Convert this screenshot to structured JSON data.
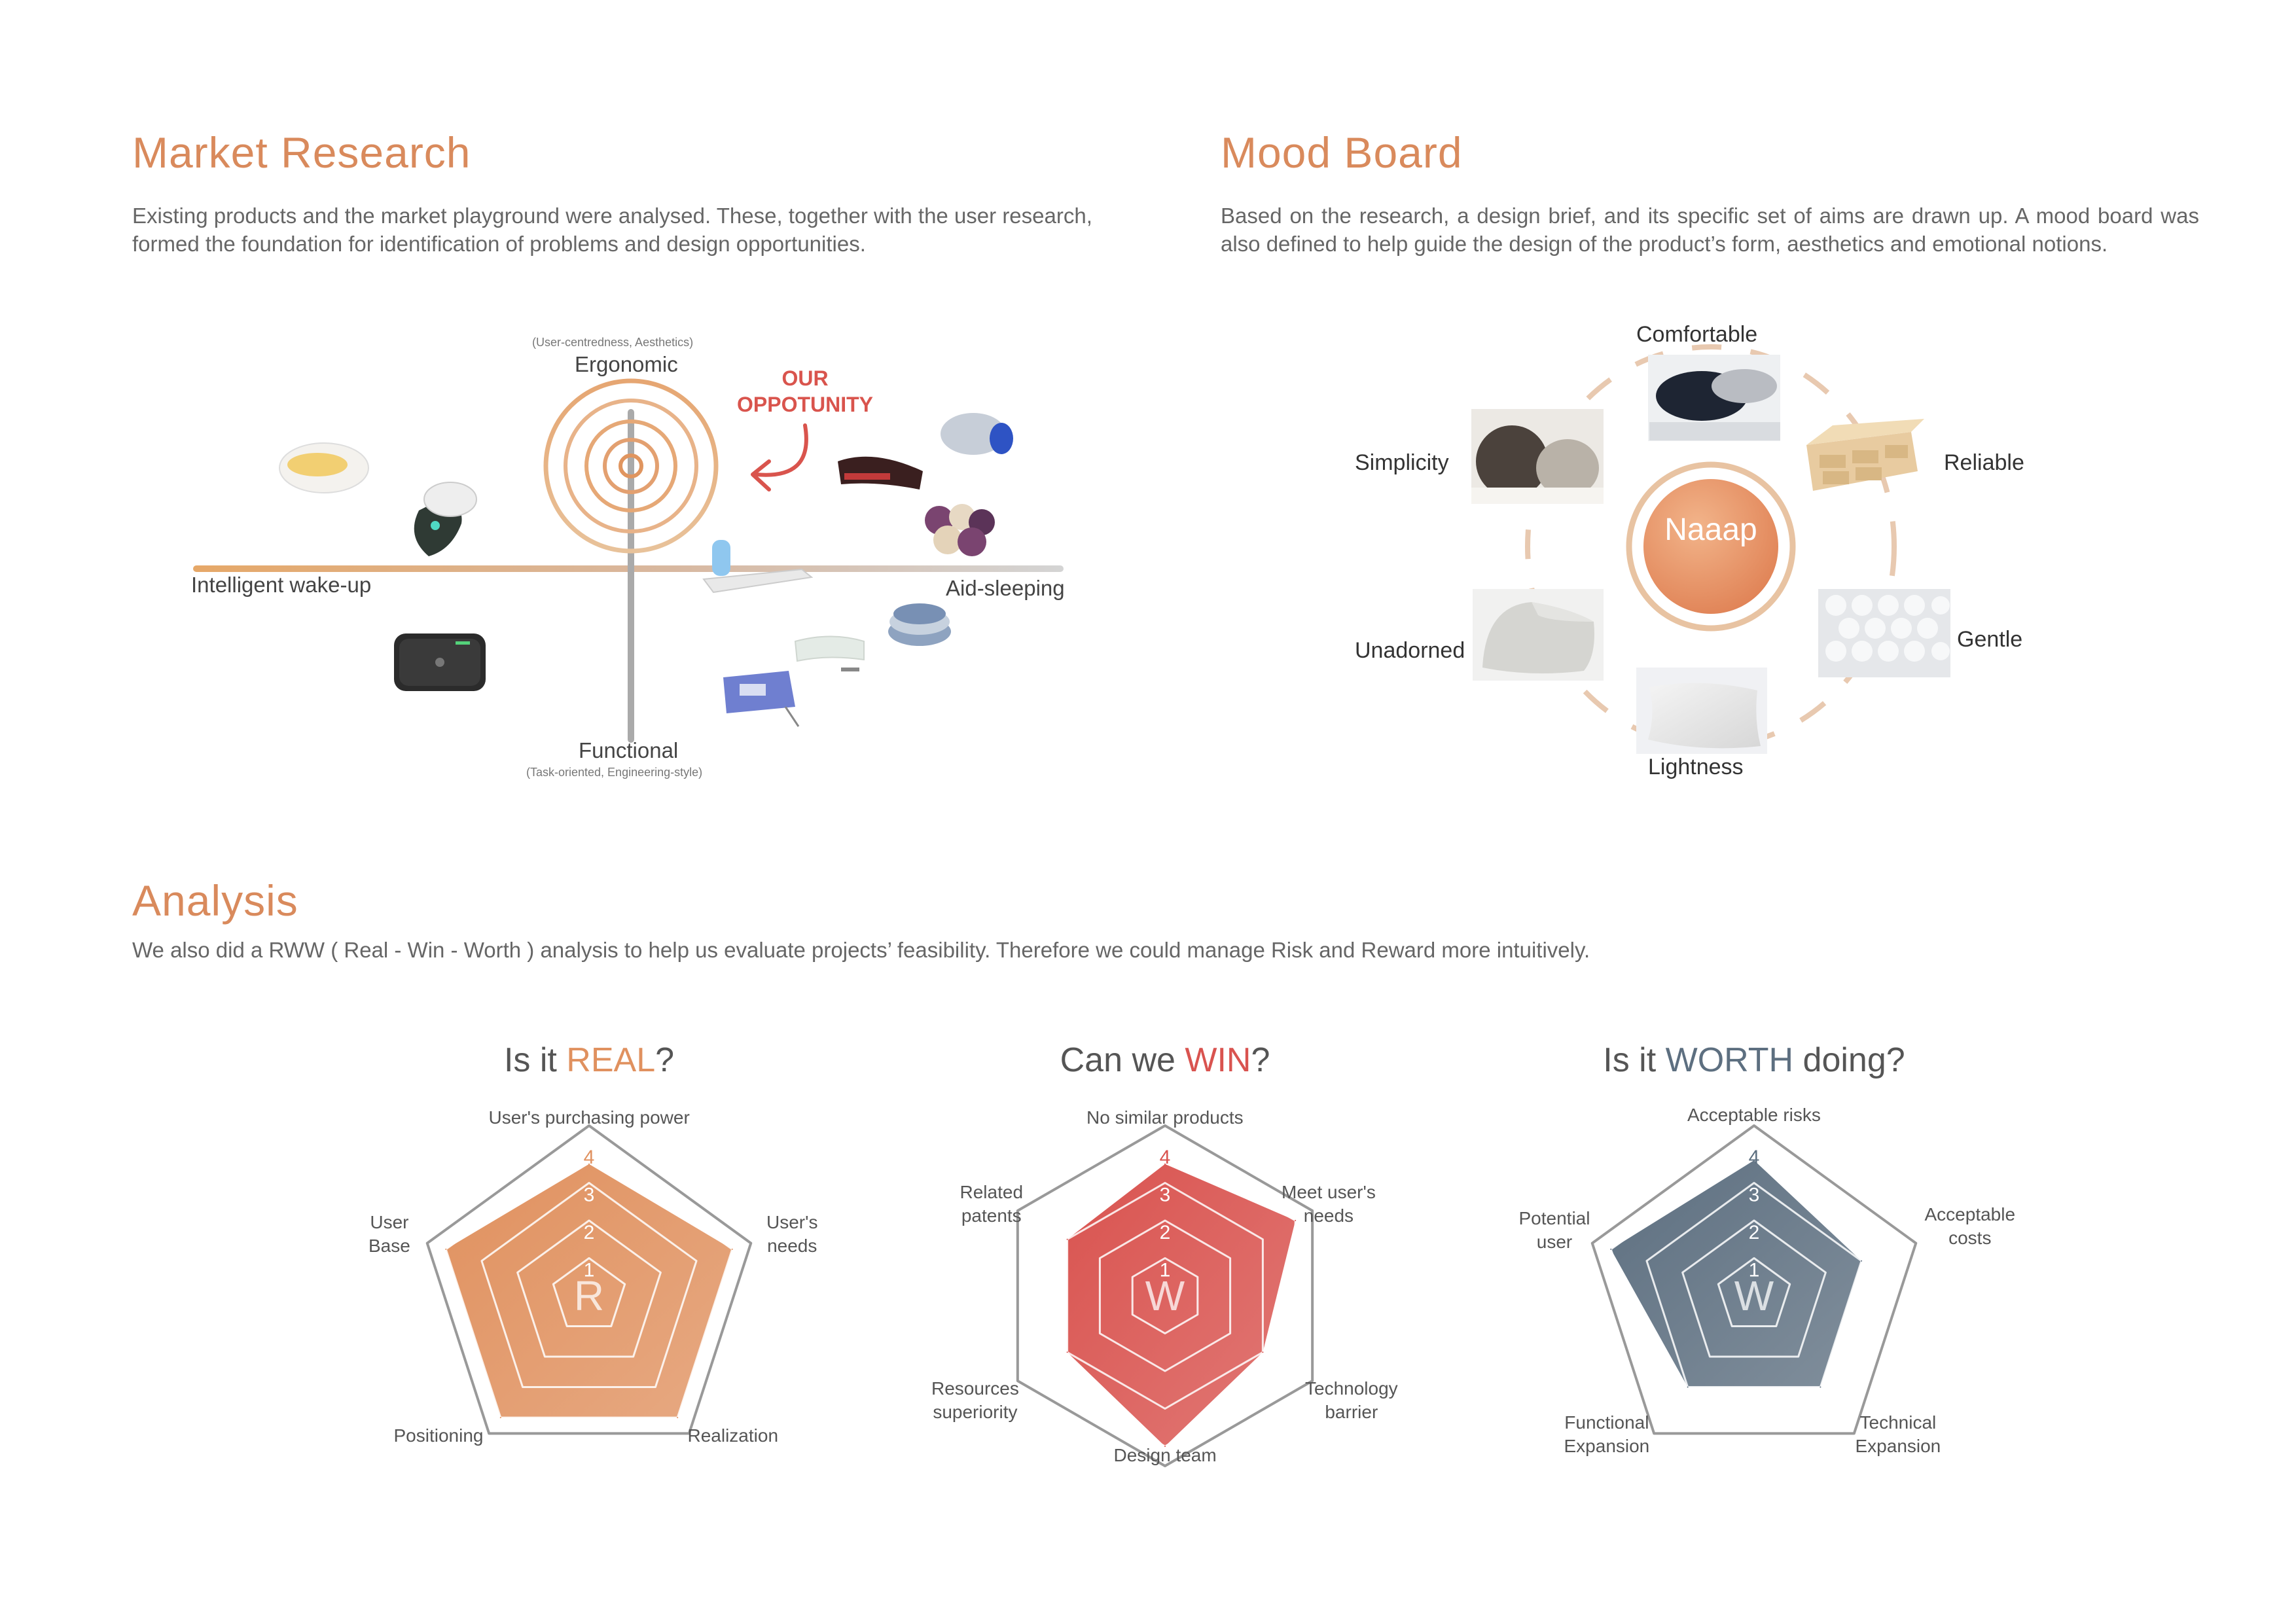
{
  "market": {
    "title": "Market Research",
    "description": "Existing products and the market playground were analysed. These, together with the user research, formed the foundation for identification of problems and design opportunities.",
    "axis": {
      "top_note": "(User-centredness, Aesthetics)",
      "top": "Ergonomic",
      "bottom": "Functional",
      "bottom_note": "(Task-oriented, Engineering-style)",
      "left": "Intelligent wake-up",
      "right": "Aid-sleeping"
    },
    "opportunity": "OUR\nOPPOTUNITY"
  },
  "mood": {
    "title": "Mood Board",
    "description": "Based on the research, a design brief, and its specific set of aims are drawn up. A mood board was also defined to help guide the design of the product’s form, aesthetics and emotional notions.",
    "center": "Naaap",
    "keywords": {
      "comfortable": "Comfortable",
      "reliable": "Reliable",
      "gentle": "Gentle",
      "lightness": "Lightness",
      "unadorned": "Unadorned",
      "simplicity": "Simplicity"
    }
  },
  "analysis": {
    "title": "Analysis",
    "description": "We also did a RWW ( Real - Win - Worth ) analysis to help us evaluate projects’ feasibility. Therefore we could manage Risk and Reward more intuitively.",
    "scale_labels": [
      "1",
      "2",
      "3",
      "4"
    ]
  },
  "chart_data": [
    {
      "type": "radar",
      "title_prefix": "Is it ",
      "title_highlight": "REAL",
      "title_suffix": "?",
      "center_letter": "R",
      "color": "#e0915f",
      "axes": [
        "User's purchasing power",
        "User's\nneeds",
        "Realization",
        "Positioning",
        "User\nBase"
      ],
      "values": [
        3.5,
        4,
        4,
        4,
        4
      ],
      "range": [
        0,
        4
      ]
    },
    {
      "type": "radar",
      "title_prefix": "Can we ",
      "title_highlight": "WIN",
      "title_suffix": "?",
      "center_letter": "W",
      "color": "#d9534f",
      "axes": [
        "No similar products",
        "Meet user's\nneeds",
        "Technology\nbarrier",
        "Design team",
        "Resources\nsuperiority",
        "Related\npatents"
      ],
      "values": [
        3.5,
        4,
        3,
        4,
        3,
        3
      ],
      "range": [
        0,
        4
      ]
    },
    {
      "type": "radar",
      "title_prefix": "Is it ",
      "title_highlight": "WORTH",
      "title_suffix": " doing?",
      "center_letter": "W",
      "color": "#5d6f80",
      "axes": [
        "Acceptable risks",
        "Acceptable\ncosts",
        "Technical\nExpansion",
        "Functional\nExpansion",
        "Potential\nuser"
      ],
      "values": [
        3.6,
        3,
        3,
        3,
        4
      ],
      "range": [
        0,
        4
      ]
    }
  ],
  "colors": {
    "accent": "#d98a5c",
    "opportunity": "#d9544d",
    "dashed_ring": "#e8c9b0",
    "axis_grey": "#999999"
  }
}
